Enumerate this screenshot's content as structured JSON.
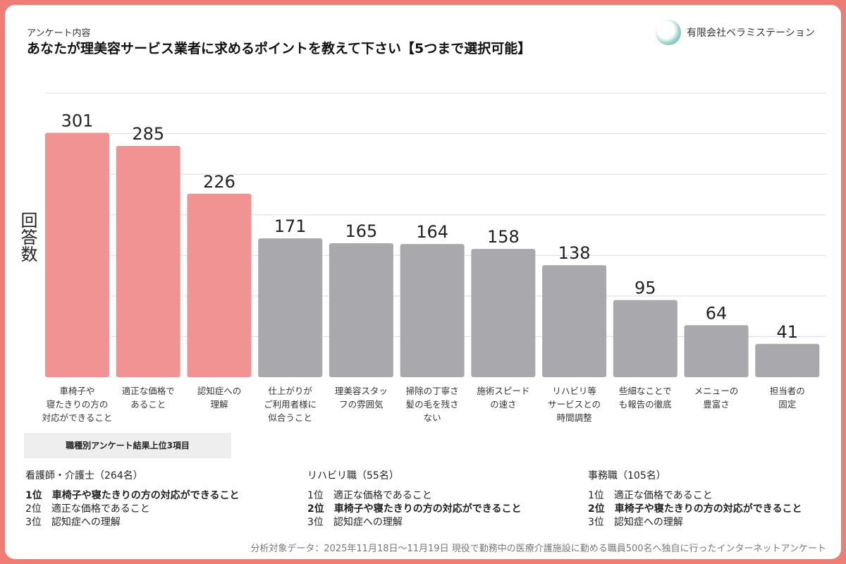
{
  "header": {
    "subtitle": "アンケート内容",
    "title": "あなたが理美容サービス業者に求めるポイントを教えて下さい【5つまで選択可能】",
    "company": "有限会社ベラミステーション"
  },
  "chart_data": {
    "type": "bar",
    "title": "あなたが理美容サービス業者に求めるポイントを教えて下さい【5つまで選択可能】",
    "ylabel": "回答数",
    "xlabel": "",
    "ylim": [
      0,
      350
    ],
    "grid": true,
    "categories": [
      "車椅子や\n寝たきりの方の\n対応ができること",
      "適正な価格で\nあること",
      "認知症への\n理解",
      "仕上がりが\nご利用者様に\n似合うこと",
      "理美容スタッ\nフの雰囲気",
      "掃除の丁寧さ\n髪の毛を残さ\nない",
      "施術スピード\nの速さ",
      "リハビリ等\nサービスとの\n時間調整",
      "些細なことで\nも報告の徹底",
      "メニューの\n豊富さ",
      "担当者の\n固定"
    ],
    "values": [
      301,
      285,
      226,
      171,
      165,
      164,
      158,
      138,
      95,
      64,
      41
    ],
    "colors": {
      "highlight": "#f29393",
      "other": "#a9a8ac"
    },
    "highlight_count": 3
  },
  "summary": {
    "heading": "職種別アンケート結果上位3項目",
    "groups": [
      {
        "name": "看護師・介護士（264名）",
        "items": [
          "1位　車椅子や寝たきりの方の対応ができること",
          "2位　適正な価格であること",
          "3位　認知症への理解"
        ],
        "bold": 0
      },
      {
        "name": "リハビリ職（55名）",
        "items": [
          "1位　適正な価格であること",
          "2位　車椅子や寝たきりの方の対応ができること",
          "3位　認知症への理解"
        ],
        "bold": 1
      },
      {
        "name": "事務職（105名）",
        "items": [
          "1位　適正な価格であること",
          "2位　車椅子や寝たきりの方の対応ができること",
          "3位　認知症への理解"
        ],
        "bold": 1
      }
    ]
  },
  "footer": "分析対象データ：2025年11月18日〜11月19日 現役で勤務中の医療介護施設に勤める職員500名へ独自に行ったインターネットアンケート"
}
